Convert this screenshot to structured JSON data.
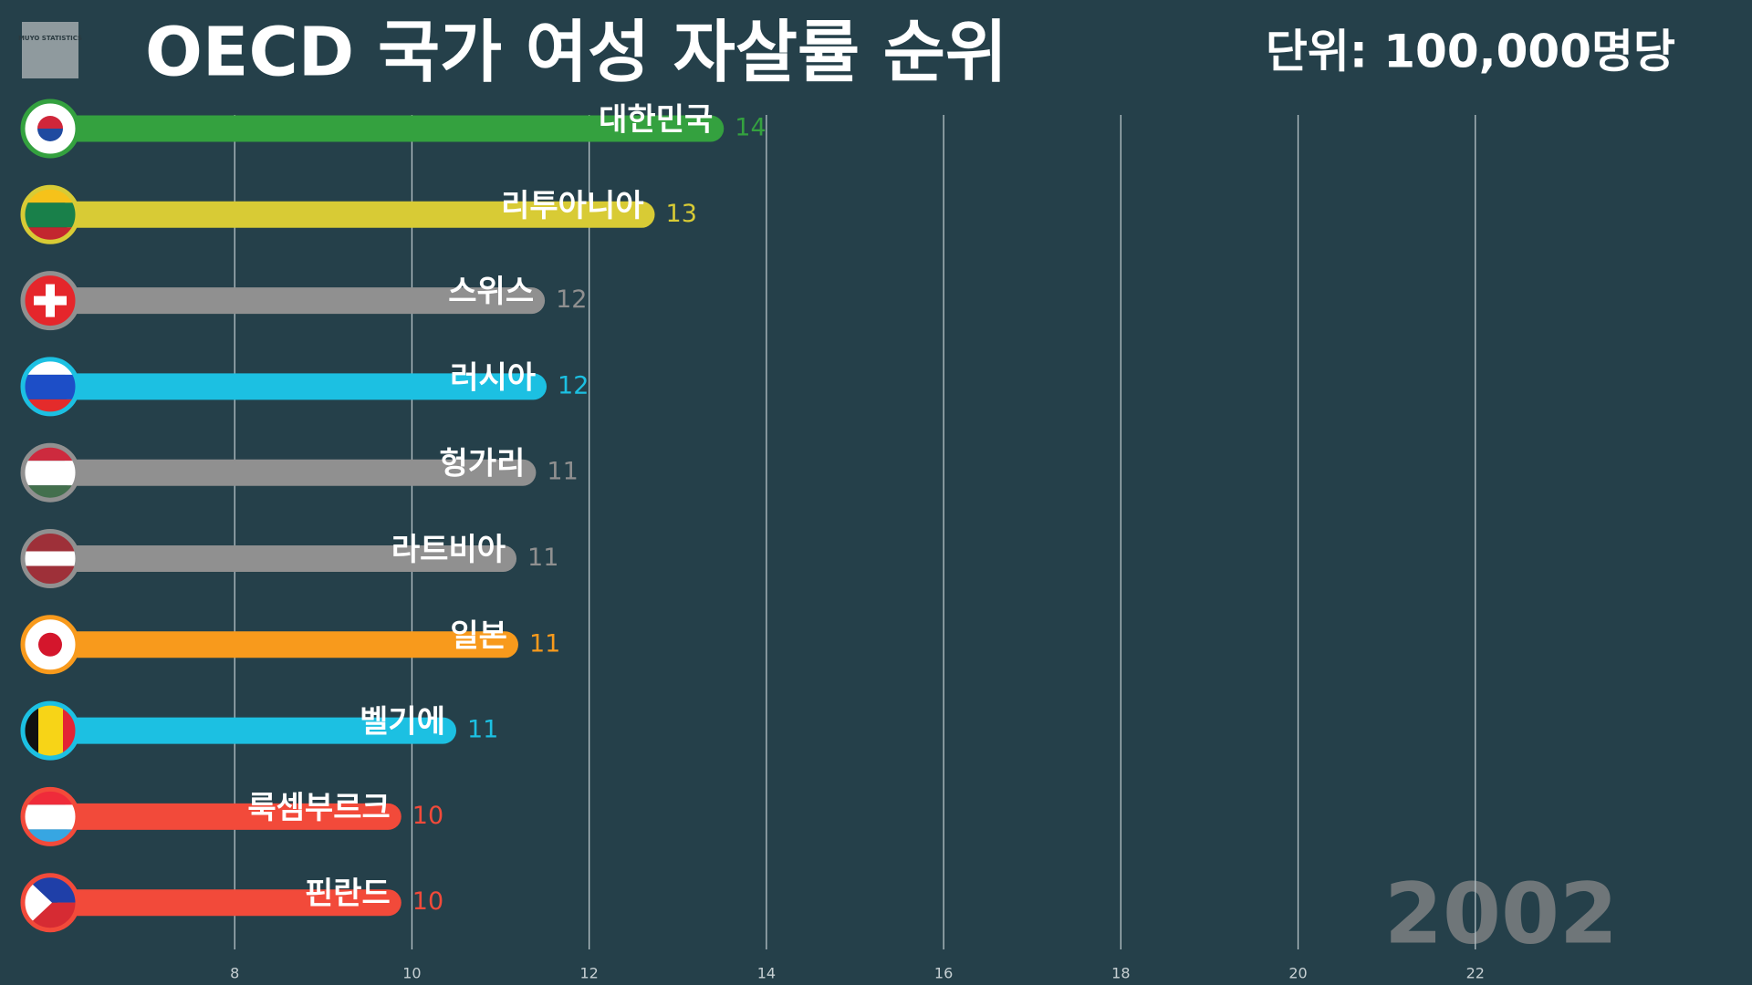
{
  "chart_data": {
    "type": "bar",
    "orientation": "horizontal",
    "title": "OECD 국가 여성 자살률 순위",
    "unit_label": "단위: 100,000명당",
    "year_label": "2002",
    "logo_text": "MUYO STATISTICS",
    "categories": [
      "대한민국",
      "리투아니아",
      "스위스",
      "러시아",
      "헝가리",
      "라트비아",
      "일본",
      "벨기에",
      "룩셈부르크",
      "핀란드"
    ],
    "values": [
      13.52,
      12.74,
      11.5,
      11.52,
      11.4,
      11.18,
      11.2,
      10.5,
      9.88,
      9.88
    ],
    "value_labels": [
      "14",
      "13",
      "12",
      "12",
      "11",
      "11",
      "11",
      "11",
      "10",
      "10"
    ],
    "colors": [
      "#34a13f",
      "#d8cb35",
      "#909090",
      "#1cc0e2",
      "#909090",
      "#909090",
      "#f89a1c",
      "#1cc0e2",
      "#f24a3a",
      "#f24a3a"
    ],
    "xlim": [
      6,
      24
    ],
    "xticks": [
      8,
      10,
      12,
      14,
      16,
      18,
      20,
      22
    ],
    "grid": true
  }
}
